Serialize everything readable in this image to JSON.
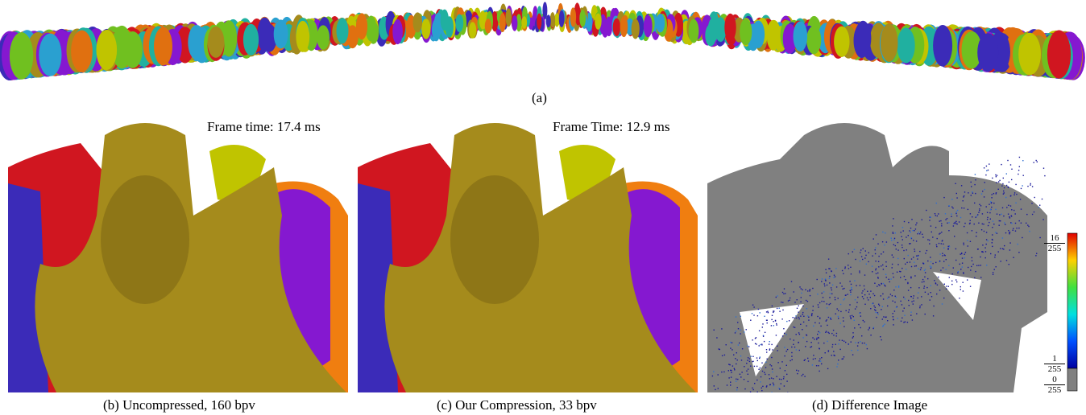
{
  "figure": {
    "panel_a": {
      "caption": "(a)"
    },
    "panel_b": {
      "frame_time": "Frame time: 17.4 ms",
      "caption": "(b) Uncompressed, 160 bpv"
    },
    "panel_c": {
      "frame_time": "Frame Time: 12.9 ms",
      "caption": "(c) Our Compression, 33 bpv"
    },
    "panel_d": {
      "caption": "(d) Difference Image"
    },
    "colorbar": {
      "labels": [
        {
          "numerator": "16",
          "denominator": "255"
        },
        {
          "numerator": "1",
          "denominator": "255"
        },
        {
          "numerator": "0",
          "denominator": "255"
        }
      ]
    }
  }
}
